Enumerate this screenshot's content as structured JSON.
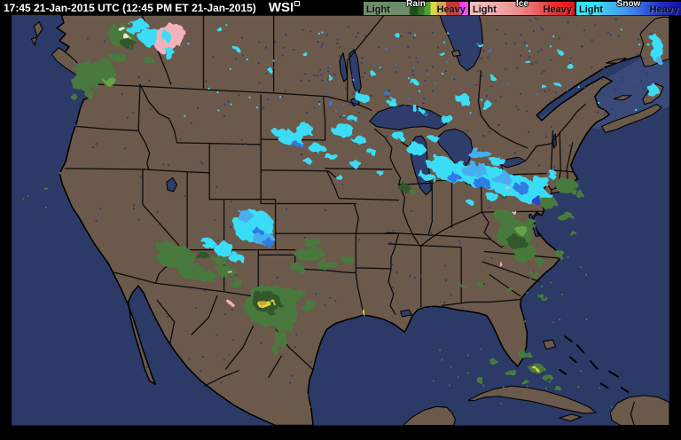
{
  "header": {
    "timestamp": "17:45 21-Jan-2015 UTC  (12:45 PM ET 21-Jan-2015)",
    "logo": "WSI"
  },
  "legend": {
    "bars": [
      {
        "type": "Rain",
        "light_label": "Light",
        "heavy_label": "Heavy",
        "stops": [
          [
            "#6e8c69",
            0
          ],
          [
            "#6e8c69",
            43
          ],
          [
            "#1f4f1c",
            45
          ],
          [
            "#1f4f1c",
            52
          ],
          [
            "#2e7325",
            52
          ],
          [
            "#2e7325",
            58
          ],
          [
            "#4fa031",
            58
          ],
          [
            "#4fa031",
            64
          ],
          [
            "#d9d740",
            64
          ],
          [
            "#d9d740",
            70
          ],
          [
            "#d2a55c",
            70
          ],
          [
            "#d2a55c",
            79
          ],
          [
            "#c23a36",
            79
          ],
          [
            "#c23a36",
            92
          ],
          [
            "#e03ee0",
            92
          ],
          [
            "#ff45ff",
            100
          ]
        ]
      },
      {
        "type": "Ice",
        "light_label": "Light",
        "heavy_label": "Heavy",
        "stops": [
          [
            "#f2c0c0",
            0
          ],
          [
            "#eeaaaa",
            25
          ],
          [
            "#ea9090",
            45
          ],
          [
            "#e66666",
            62
          ],
          [
            "#e63333",
            78
          ],
          [
            "#ee1111",
            100
          ]
        ]
      },
      {
        "type": "Snow",
        "light_label": "Light",
        "heavy_label": "Heavy",
        "stops": [
          [
            "#30e4f8",
            0
          ],
          [
            "#30e4f8",
            18
          ],
          [
            "#3fc2f4",
            28
          ],
          [
            "#3f9bee",
            46
          ],
          [
            "#3566e0",
            63
          ],
          [
            "#2233c0",
            79
          ],
          [
            "#1512a0",
            100
          ]
        ]
      }
    ]
  },
  "map": {
    "colors": {
      "land": "#6b594b",
      "ocean": "#2b3a66",
      "gulf": "#3a4a78",
      "lake": "#2e3d6b",
      "border": "#0a0a0a",
      "rain0": "#33592b",
      "rain1": "#4a7a3c",
      "rain2": "#66a347",
      "yellow": "#ddd535",
      "orange": "#d99b30",
      "snow1": "#3bdcf5",
      "snow2": "#49aef0",
      "snow3": "#2e7ce4",
      "snow4": "#2747d0",
      "ice": "#f2b2bc",
      "cream": "#efe5d2"
    },
    "precip_areas": [
      {
        "region": "British Columbia / Alberta",
        "precip": [
          "snow",
          "rain",
          "ice"
        ]
      },
      {
        "region": "Pacific Northwest coast",
        "precip": [
          "rain"
        ]
      },
      {
        "region": "Northern Plains ND/SD/MN",
        "precip": [
          "snow"
        ]
      },
      {
        "region": "Great Lakes / Upper Midwest",
        "precip": [
          "snow"
        ]
      },
      {
        "region": "Ohio Valley / Pennsylvania / New York",
        "precip": [
          "snow"
        ]
      },
      {
        "region": "Mid-Atlantic coast VA/MD/DE and offshore",
        "precip": [
          "rain"
        ]
      },
      {
        "region": "Colorado Rockies",
        "precip": [
          "snow"
        ]
      },
      {
        "region": "Arizona / New Mexico",
        "precip": [
          "rain"
        ]
      },
      {
        "region": "West Texas",
        "precip": [
          "rain",
          "heavy rain core"
        ]
      },
      {
        "region": "Florida / Bahamas",
        "precip": [
          "rain"
        ]
      },
      {
        "region": "Atlantic Canada NS / Newfoundland",
        "precip": [
          "snow"
        ]
      }
    ]
  }
}
